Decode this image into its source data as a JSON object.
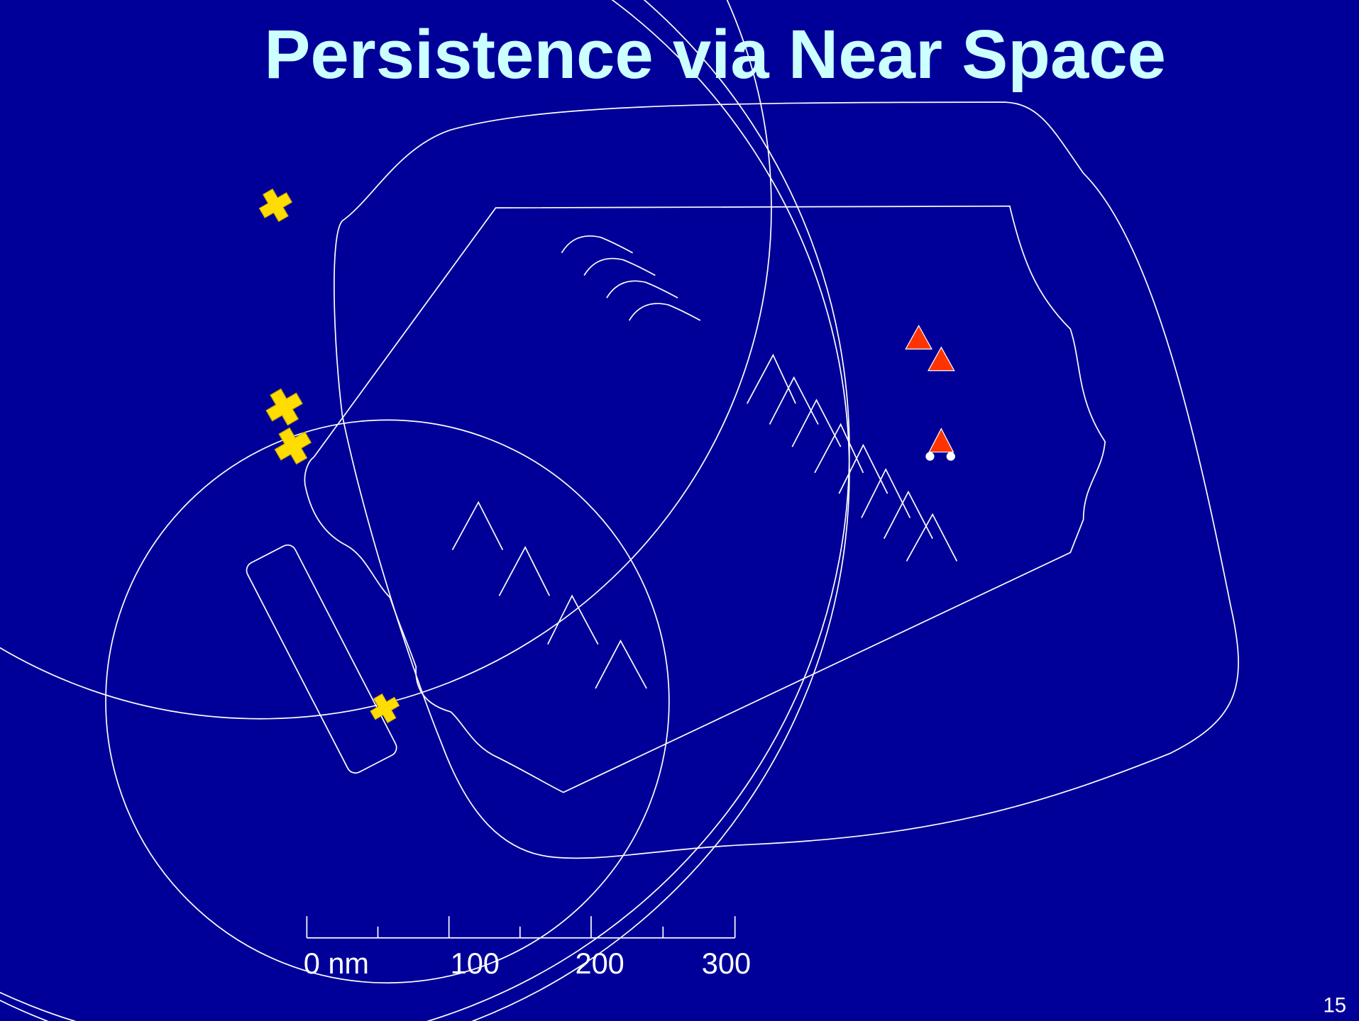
{
  "title": "Persistence via Near Space",
  "scale_bar": {
    "labels": [
      "0 nm",
      "100",
      "200",
      "300"
    ]
  },
  "page_number": "15"
}
